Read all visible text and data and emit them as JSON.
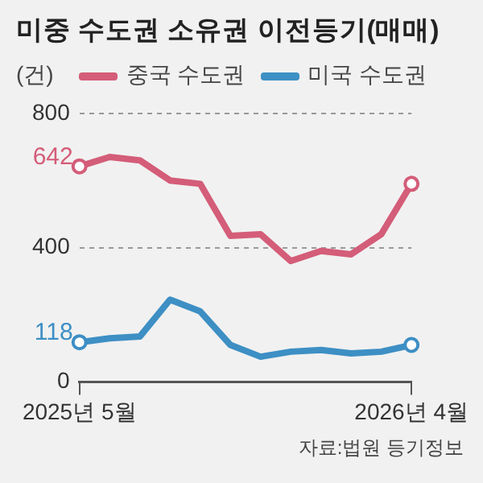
{
  "chart_data": {
    "type": "line",
    "title": "미중 수도권 소유권 이전등기(매매)",
    "ylabel": "(건)",
    "categories": [
      "2025년 5월",
      null,
      null,
      null,
      null,
      null,
      null,
      null,
      null,
      null,
      null,
      "2026년 4월"
    ],
    "series": [
      {
        "name": "중국 수도권",
        "color": "#d45d79",
        "values": [
          642,
          670,
          660,
          600,
          590,
          435,
          440,
          360,
          390,
          380,
          440,
          590
        ],
        "value_labels": [
          "642",
          null,
          null,
          null,
          null,
          null,
          null,
          null,
          null,
          null,
          null,
          null
        ]
      },
      {
        "name": "미국 수도권",
        "color": "#3d8fc4",
        "values": [
          118,
          130,
          135,
          245,
          210,
          110,
          75,
          90,
          95,
          85,
          90,
          110
        ],
        "value_labels": [
          "118",
          null,
          null,
          null,
          null,
          null,
          null,
          null,
          null,
          null,
          null,
          null
        ]
      }
    ],
    "ylim": [
      0,
      800
    ],
    "yticks": [
      0,
      400,
      800
    ],
    "grid": "y",
    "line_style": "solid",
    "legend": "top left",
    "annotations": [
      "자료:법원 등기정보"
    ]
  }
}
